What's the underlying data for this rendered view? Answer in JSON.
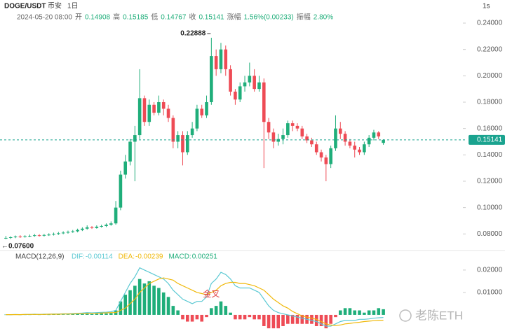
{
  "header": {
    "symbol": "DOGE/USDT",
    "exchange": "币安",
    "interval": "1日",
    "datetime": "2024-05-20 08:00",
    "open_label": "开",
    "high_label": "高",
    "low_label": "低",
    "close_label": "收",
    "change_label": "涨幅",
    "change": "1.56%(0.00233)",
    "amplitude_label": "振幅",
    "amplitude": "2.80%",
    "speed": "1s"
  },
  "chart_data": [
    {
      "type": "candlestick",
      "open": [
        0.0765,
        0.077,
        0.0775,
        0.078,
        0.0778,
        0.0782,
        0.0785,
        0.079,
        0.0788,
        0.0792,
        0.0795,
        0.08,
        0.0805,
        0.081,
        0.0815,
        0.082,
        0.083,
        0.084,
        0.085,
        0.0845,
        0.0855,
        0.086,
        0.087,
        0.088,
        0.1,
        0.125,
        0.135,
        0.15,
        0.155,
        0.183,
        0.165,
        0.178,
        0.172,
        0.18,
        0.175,
        0.168,
        0.15,
        0.155,
        0.142,
        0.155,
        0.16,
        0.175,
        0.17,
        0.18,
        0.215,
        0.205,
        0.22,
        0.205,
        0.188,
        0.182,
        0.192,
        0.195,
        0.2,
        0.19,
        0.195,
        0.165,
        0.157,
        0.15,
        0.152,
        0.155,
        0.164,
        0.162,
        0.16,
        0.154,
        0.151,
        0.148,
        0.142,
        0.138,
        0.133,
        0.145,
        0.16,
        0.156,
        0.15,
        0.147,
        0.144,
        0.142,
        0.148,
        0.153,
        0.157,
        0.14908
      ],
      "high": [
        0.0785,
        0.0782,
        0.0788,
        0.079,
        0.079,
        0.0795,
        0.08,
        0.0798,
        0.08,
        0.0805,
        0.081,
        0.0815,
        0.082,
        0.0825,
        0.083,
        0.084,
        0.085,
        0.0865,
        0.086,
        0.0865,
        0.087,
        0.088,
        0.0895,
        0.105,
        0.128,
        0.14,
        0.152,
        0.162,
        0.205,
        0.185,
        0.182,
        0.18,
        0.185,
        0.182,
        0.178,
        0.17,
        0.158,
        0.158,
        0.158,
        0.165,
        0.178,
        0.178,
        0.185,
        0.22888,
        0.22,
        0.225,
        0.223,
        0.208,
        0.19,
        0.195,
        0.2,
        0.21,
        0.205,
        0.2,
        0.198,
        0.168,
        0.16,
        0.156,
        0.16,
        0.166,
        0.166,
        0.164,
        0.162,
        0.156,
        0.153,
        0.15,
        0.144,
        0.14,
        0.147,
        0.17,
        0.165,
        0.158,
        0.152,
        0.15,
        0.146,
        0.15,
        0.155,
        0.159,
        0.158,
        0.15185
      ],
      "low": [
        0.076,
        0.0762,
        0.0768,
        0.077,
        0.0772,
        0.0775,
        0.0778,
        0.078,
        0.078,
        0.0785,
        0.0788,
        0.0792,
        0.0798,
        0.0802,
        0.0808,
        0.0812,
        0.0822,
        0.0832,
        0.0838,
        0.084,
        0.0848,
        0.0852,
        0.0862,
        0.087,
        0.098,
        0.122,
        0.132,
        0.12,
        0.152,
        0.162,
        0.162,
        0.17,
        0.17,
        0.17,
        0.165,
        0.145,
        0.145,
        0.132,
        0.14,
        0.153,
        0.158,
        0.168,
        0.168,
        0.178,
        0.2,
        0.202,
        0.2,
        0.185,
        0.178,
        0.18,
        0.188,
        0.192,
        0.188,
        0.188,
        0.13,
        0.152,
        0.145,
        0.147,
        0.148,
        0.153,
        0.158,
        0.158,
        0.152,
        0.149,
        0.146,
        0.14,
        0.135,
        0.12,
        0.13,
        0.143,
        0.152,
        0.147,
        0.145,
        0.138,
        0.14,
        0.14,
        0.146,
        0.151,
        0.152,
        0.14767
      ],
      "close": [
        0.077,
        0.0775,
        0.078,
        0.0778,
        0.0782,
        0.0785,
        0.079,
        0.0788,
        0.0792,
        0.0795,
        0.08,
        0.0805,
        0.081,
        0.0815,
        0.082,
        0.083,
        0.084,
        0.085,
        0.0845,
        0.0855,
        0.086,
        0.087,
        0.088,
        0.1,
        0.125,
        0.135,
        0.15,
        0.155,
        0.183,
        0.165,
        0.178,
        0.172,
        0.18,
        0.175,
        0.168,
        0.15,
        0.155,
        0.142,
        0.155,
        0.16,
        0.175,
        0.17,
        0.18,
        0.215,
        0.205,
        0.22,
        0.205,
        0.188,
        0.182,
        0.192,
        0.195,
        0.2,
        0.19,
        0.195,
        0.165,
        0.157,
        0.15,
        0.152,
        0.155,
        0.164,
        0.162,
        0.16,
        0.154,
        0.151,
        0.148,
        0.142,
        0.138,
        0.133,
        0.145,
        0.16,
        0.156,
        0.15,
        0.147,
        0.144,
        0.142,
        0.148,
        0.153,
        0.157,
        0.154,
        0.15141
      ],
      "low_label": "0.07600",
      "ylim": [
        0.069,
        0.2416
      ],
      "yticks": [
        {
          "value": 0.24,
          "label": "0.24000"
        },
        {
          "value": 0.22,
          "label": "0.22000"
        },
        {
          "value": 0.2,
          "label": "0.20000"
        },
        {
          "value": 0.18,
          "label": "0.18000"
        },
        {
          "value": 0.16,
          "label": "0.16000"
        },
        {
          "value": 0.14,
          "label": "0.14000"
        },
        {
          "value": 0.12,
          "label": "0.12000"
        },
        {
          "value": 0.1,
          "label": "0.10000"
        },
        {
          "value": 0.08,
          "label": "0.08000"
        }
      ],
      "up_color": "#1fae7a",
      "down_color": "#ee4b55",
      "last_color": "#1aa38f"
    },
    {
      "type": "macd",
      "title": "MACD(12,26,9)",
      "series": [
        {
          "name": "DIF:",
          "color": "#5cc9d3",
          "values": [
            0.0001,
            0.0001,
            0.0002,
            0.0001,
            0.0002,
            0.0002,
            0.0003,
            0.0002,
            0.0003,
            0.0003,
            0.0004,
            0.0004,
            0.0005,
            0.0005,
            0.0006,
            0.0007,
            0.0008,
            0.001,
            0.0009,
            0.001,
            0.0011,
            0.0012,
            0.0014,
            0.002,
            0.006,
            0.01,
            0.014,
            0.017,
            0.021,
            0.02,
            0.019,
            0.018,
            0.017,
            0.016,
            0.014,
            0.011,
            0.009,
            0.007,
            0.006,
            0.005,
            0.006,
            0.006,
            0.008,
            0.014,
            0.016,
            0.019,
            0.018,
            0.016,
            0.013,
            0.012,
            0.012,
            0.012,
            0.011,
            0.01,
            0.007,
            0.004,
            0.002,
            0.001,
            0.0005,
            0,
            -0.0005,
            -0.001,
            -0.0015,
            -0.002,
            -0.0025,
            -0.003,
            -0.004,
            -0.005,
            -0.005,
            -0.004,
            -0.003,
            -0.0025,
            -0.0025,
            -0.0025,
            -0.002,
            -0.002,
            -0.0018,
            -0.0015,
            -0.0013,
            -0.00114
          ]
        },
        {
          "name": "DEA:",
          "color": "#f0b90b",
          "values": [
            0.0001,
            0.0001,
            0.0001,
            0.0001,
            0.0002,
            0.0002,
            0.0002,
            0.0002,
            0.0002,
            0.0003,
            0.0003,
            0.0003,
            0.0004,
            0.0004,
            0.0004,
            0.0005,
            0.0005,
            0.0006,
            0.0007,
            0.0007,
            0.0008,
            0.0009,
            0.001,
            0.001,
            0.002,
            0.003,
            0.005,
            0.007,
            0.01,
            0.012,
            0.014,
            0.015,
            0.016,
            0.0165,
            0.016,
            0.0155,
            0.014,
            0.013,
            0.012,
            0.011,
            0.01,
            0.0095,
            0.009,
            0.01,
            0.011,
            0.013,
            0.014,
            0.0145,
            0.0145,
            0.014,
            0.014,
            0.0135,
            0.013,
            0.012,
            0.011,
            0.009,
            0.007,
            0.0055,
            0.004,
            0.003,
            0.0015,
            0.0005,
            -0.0005,
            -0.001,
            -0.0015,
            -0.002,
            -0.003,
            -0.004,
            -0.0045,
            -0.0048,
            -0.0045,
            -0.004,
            -0.0038,
            -0.0035,
            -0.0033,
            -0.003,
            -0.0028,
            -0.0026,
            -0.0025,
            -0.00239
          ]
        },
        {
          "name": "MACD:",
          "color": "#1fae7a",
          "negative_color": "#ee4b55",
          "values": [
            0.0001,
            0.0001,
            0.0002,
            0.0001,
            0.0001,
            0.0001,
            0.0002,
            0.0001,
            0.0002,
            0.0001,
            0.0002,
            0.0002,
            0.0002,
            0.0002,
            0.0003,
            0.0004,
            0.0005,
            0.0007,
            0.0004,
            0.0005,
            0.0006,
            0.0006,
            0.0008,
            0.002,
            0.006,
            0.009,
            0.011,
            0.013,
            0.016,
            0.014,
            0.015,
            0.013,
            0.012,
            0.01,
            0.008,
            0.004,
            0.002,
            -0.002,
            -0.003,
            -0.003,
            -0.002,
            -0.003,
            -0.001,
            0.003,
            0.004,
            0.006,
            0.004,
            0.001,
            -0.002,
            -0.002,
            -0.002,
            -0.001,
            -0.002,
            -0.002,
            -0.005,
            -0.006,
            -0.006,
            -0.006,
            -0.005,
            -0.004,
            -0.004,
            -0.004,
            -0.004,
            -0.004,
            -0.004,
            -0.005,
            -0.005,
            -0.006,
            -0.004,
            -0.001,
            0.002,
            0.003,
            0.003,
            0.002,
            0.002,
            0.001,
            0.002,
            0.002,
            0.003,
            0.00251
          ]
        }
      ],
      "ylim": [
        -0.0072,
        0.0234
      ],
      "yticks": [
        {
          "value": 0.02,
          "label": "0.02000"
        },
        {
          "value": 0.01,
          "label": "0.01000"
        }
      ],
      "annotation": "金叉"
    }
  ],
  "watermark": "老陈ETH"
}
